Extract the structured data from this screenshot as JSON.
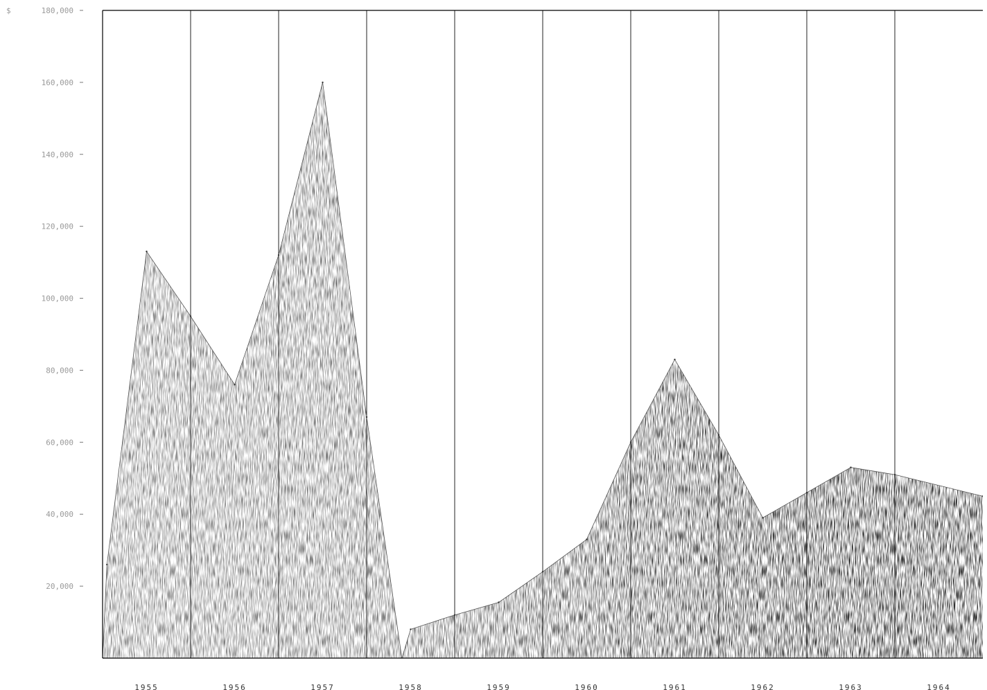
{
  "chart_data": {
    "type": "area",
    "title": "",
    "xlabel": "",
    "ylabel": "",
    "y_prefix": "$",
    "ylim": [
      0,
      180000
    ],
    "y_ticks": [
      20000,
      40000,
      60000,
      80000,
      100000,
      120000,
      140000,
      160000,
      180000
    ],
    "y_tick_labels": [
      "20,000",
      "40,000",
      "60,000",
      "80,000",
      "100,000",
      "120,000",
      "140,000",
      "160,000",
      "180,000"
    ],
    "categories": [
      "1955",
      "1956",
      "1957",
      "1958",
      "1959",
      "1960",
      "1961",
      "1962",
      "1963",
      "1964"
    ],
    "grid": "vertical",
    "legend": "none",
    "fill_style": "stippled, darkening toward later years",
    "x": [
      1954.5,
      1954.55,
      1955,
      1955.5,
      1956,
      1956.5,
      1957,
      1957.5,
      1957.9,
      1958,
      1958.5,
      1959,
      1959.5,
      1960,
      1960.5,
      1961,
      1961.5,
      1962,
      1962.5,
      1963,
      1963.5,
      1964.5
    ],
    "values": [
      0,
      26000,
      113000,
      95000,
      76000,
      112000,
      160000,
      67000,
      0,
      8000,
      12000,
      15500,
      24000,
      33000,
      60000,
      83000,
      62000,
      39000,
      46000,
      53000,
      51000,
      45000
    ]
  }
}
